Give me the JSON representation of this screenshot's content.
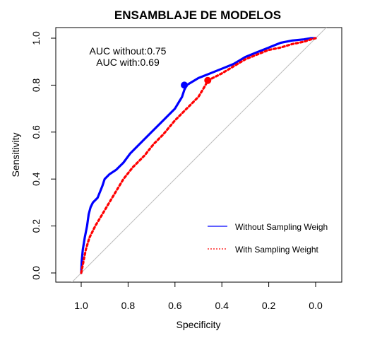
{
  "chart_data": {
    "type": "line",
    "title": "ENSAMBLAJE DE MODELOS",
    "xlabel": "Specificity",
    "ylabel": "Sensitivity",
    "xlim": [
      1.05,
      -0.05
    ],
    "ylim": [
      0,
      1
    ],
    "x_ticks": [
      {
        "value": 1.0,
        "label": "1.0"
      },
      {
        "value": 0.8,
        "label": "0.8"
      },
      {
        "value": 0.6,
        "label": "0.6"
      },
      {
        "value": 0.4,
        "label": "0.4"
      },
      {
        "value": 0.2,
        "label": "0.2"
      },
      {
        "value": 0.0,
        "label": "0.0"
      }
    ],
    "y_ticks": [
      {
        "value": 0.0,
        "label": "0.0"
      },
      {
        "value": 0.2,
        "label": "0.2"
      },
      {
        "value": 0.4,
        "label": "0.4"
      },
      {
        "value": 0.6,
        "label": "0.6"
      },
      {
        "value": 0.8,
        "label": "0.8"
      },
      {
        "value": 1.0,
        "label": "1.0"
      }
    ],
    "annotations": [
      {
        "text": "AUC without:0.75"
      },
      {
        "text": "AUC with:0.69"
      }
    ],
    "reference_line": {
      "color": "#bebebe"
    },
    "series": [
      {
        "name": "Without Sampling Weigh",
        "color": "#0000ff",
        "style": "solid",
        "points": [
          [
            1.0,
            0.0
          ],
          [
            0.998,
            0.05
          ],
          [
            0.993,
            0.1
          ],
          [
            0.985,
            0.15
          ],
          [
            0.975,
            0.2
          ],
          [
            0.968,
            0.25
          ],
          [
            0.96,
            0.28
          ],
          [
            0.95,
            0.3
          ],
          [
            0.93,
            0.32
          ],
          [
            0.91,
            0.37
          ],
          [
            0.9,
            0.4
          ],
          [
            0.88,
            0.42
          ],
          [
            0.85,
            0.44
          ],
          [
            0.82,
            0.47
          ],
          [
            0.79,
            0.51
          ],
          [
            0.75,
            0.55
          ],
          [
            0.7,
            0.6
          ],
          [
            0.65,
            0.65
          ],
          [
            0.6,
            0.7
          ],
          [
            0.57,
            0.75
          ],
          [
            0.56,
            0.78
          ],
          [
            0.55,
            0.8
          ],
          [
            0.5,
            0.83
          ],
          [
            0.45,
            0.85
          ],
          [
            0.4,
            0.87
          ],
          [
            0.35,
            0.89
          ],
          [
            0.3,
            0.92
          ],
          [
            0.25,
            0.94
          ],
          [
            0.2,
            0.96
          ],
          [
            0.15,
            0.98
          ],
          [
            0.1,
            0.99
          ],
          [
            0.05,
            0.995
          ],
          [
            0.02,
            1.0
          ],
          [
            0.0,
            1.0
          ]
        ]
      },
      {
        "name": "With Sampling Weight",
        "color": "#ff0000",
        "style": "dotted",
        "points": [
          [
            1.0,
            0.0
          ],
          [
            0.99,
            0.05
          ],
          [
            0.98,
            0.1
          ],
          [
            0.965,
            0.15
          ],
          [
            0.94,
            0.2
          ],
          [
            0.91,
            0.25
          ],
          [
            0.88,
            0.3
          ],
          [
            0.85,
            0.35
          ],
          [
            0.82,
            0.4
          ],
          [
            0.78,
            0.45
          ],
          [
            0.73,
            0.5
          ],
          [
            0.69,
            0.55
          ],
          [
            0.65,
            0.59
          ],
          [
            0.6,
            0.65
          ],
          [
            0.55,
            0.7
          ],
          [
            0.5,
            0.75
          ],
          [
            0.47,
            0.8
          ],
          [
            0.46,
            0.82
          ],
          [
            0.4,
            0.85
          ],
          [
            0.35,
            0.88
          ],
          [
            0.3,
            0.91
          ],
          [
            0.25,
            0.93
          ],
          [
            0.2,
            0.95
          ],
          [
            0.15,
            0.96
          ],
          [
            0.1,
            0.975
          ],
          [
            0.05,
            0.985
          ],
          [
            0.02,
            0.995
          ],
          [
            0.0,
            1.0
          ]
        ]
      }
    ],
    "threshold_points": [
      {
        "series": "Without Sampling Weigh",
        "x": 0.56,
        "y": 0.8,
        "color": "#0000ff"
      },
      {
        "series": "With Sampling Weight",
        "x": 0.46,
        "y": 0.82,
        "color": "#ff0000"
      }
    ],
    "legend": {
      "placement": "bottom-right",
      "entries": [
        {
          "label": "Without Sampling Weigh",
          "color": "#0000ff",
          "style": "solid"
        },
        {
          "label": "With Sampling Weight",
          "color": "#ff0000",
          "style": "dotted"
        }
      ]
    }
  }
}
